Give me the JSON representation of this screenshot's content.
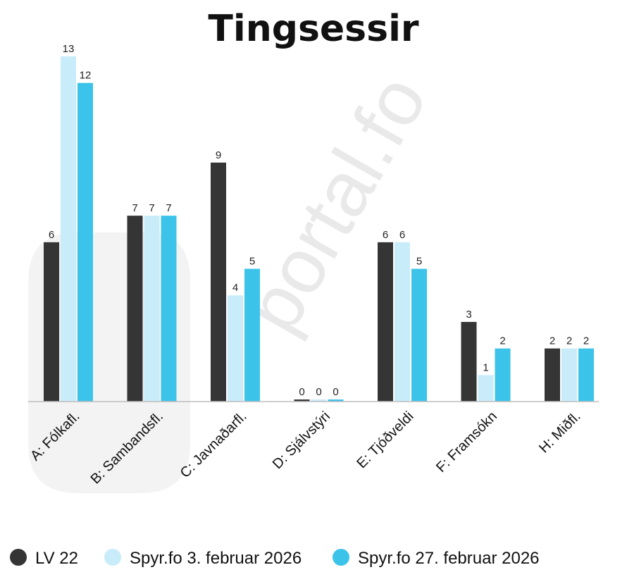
{
  "watermark": "portal.fo",
  "chart_data": {
    "type": "bar",
    "title": "Tingsessir",
    "categories": [
      "A: Fólkafl.",
      "B: Sambandsfl.",
      "C: Javnaðarfl.",
      "D: Sjálvstýri",
      "E: Tjóðveldi",
      "F: Framsókn",
      "H: Miðfl."
    ],
    "series": [
      {
        "name": "LV 22",
        "color": "#353535",
        "values": [
          6,
          7,
          9,
          0,
          6,
          3,
          2
        ]
      },
      {
        "name": "Spyr.fo 3. februar 2026",
        "color": "#c9ecfa",
        "values": [
          13,
          7,
          4,
          0,
          6,
          1,
          2
        ]
      },
      {
        "name": "Spyr.fo 27. februar 2026",
        "color": "#3cc3ea",
        "values": [
          12,
          7,
          5,
          0,
          5,
          2,
          2
        ]
      }
    ],
    "ylim": [
      0,
      13
    ],
    "xlabel": "",
    "ylabel": "",
    "grid": false,
    "legend_position": "bottom"
  }
}
